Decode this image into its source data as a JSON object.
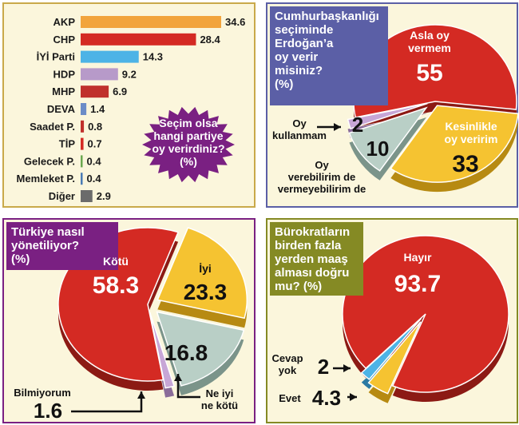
{
  "colors": {
    "panel_bg": "#fbf6dc",
    "border": "#c9a94a",
    "red": "#d42a23",
    "red_dark": "#8c1a14",
    "yellow": "#f5c331",
    "yellow_dark": "#b78a12",
    "grey": "#b9cfc6",
    "grey_dark": "#7b948a",
    "purple_badge": "#7a2082",
    "blue_box": "#5b5fa6",
    "olive_box": "#858a24"
  },
  "chart_data": [
    {
      "type": "bar",
      "title": "Seçim olsa hangi partiye oy verirdiniz? (%)",
      "categories": [
        "AKP",
        "CHP",
        "İYİ Parti",
        "HDP",
        "MHP",
        "DEVA",
        "Saadet P.",
        "TİP",
        "Gelecek P.",
        "Memleket P.",
        "Diğer"
      ],
      "values": [
        34.6,
        28.4,
        14.3,
        9.2,
        6.9,
        1.4,
        0.8,
        0.7,
        0.4,
        0.4,
        2.9
      ],
      "value_labels": [
        "34.6",
        "28.4",
        "14.3",
        "9.2",
        "6.9",
        "1.4",
        "0.8",
        "0.7",
        "0.4",
        "0.4",
        "2.9"
      ],
      "colors": [
        "#f2a43c",
        "#d42a23",
        "#4db3e6",
        "#b79ac9",
        "#c0302c",
        "#6b8cc7",
        "#c0302c",
        "#d42a23",
        "#6aa84f",
        "#4a7bb5",
        "#6b6b6b"
      ],
      "xlim": [
        0,
        34.6
      ]
    },
    {
      "type": "pie",
      "title": "Cumhurbaşkanlığı seçiminde Erdoğan’a oy verir misiniz? (%)",
      "categories": [
        "Asla oy vermem",
        "Kesinlikle oy veririm",
        "Oy verebilirim de vermeyebilirim de",
        "Oy kullanmam"
      ],
      "values": [
        55,
        33,
        10,
        2
      ],
      "value_labels": [
        "55",
        "33",
        "10",
        "2"
      ],
      "label_lines": [
        [
          "Asla oy",
          "vermem"
        ],
        [
          "Kesinlikle",
          "oy veririm"
        ],
        [
          "Oy",
          "verebilirim de",
          "vermeyebilirim de"
        ],
        [
          "Oy",
          "kullanmam"
        ]
      ]
    },
    {
      "type": "pie",
      "title": "Türkiye nasıl yönetiliyor? (%)",
      "categories": [
        "Kötü",
        "İyi",
        "Ne iyi ne kötü",
        "Bilmiyorum"
      ],
      "values": [
        58.3,
        23.3,
        16.8,
        1.6
      ],
      "value_labels": [
        "58.3",
        "23.3",
        "16.8",
        "1.6"
      ],
      "label_lines": [
        [
          "Kötü"
        ],
        [
          "İyi"
        ],
        [
          "Ne iyi",
          "ne kötü"
        ],
        [
          "Bilmiyorum"
        ]
      ]
    },
    {
      "type": "pie",
      "title": "Bürokratların birden fazla yerden maaş alması doğru mu? (%)",
      "categories": [
        "Hayır",
        "Evet",
        "Cevap yok"
      ],
      "values": [
        93.7,
        4.3,
        2
      ],
      "value_labels": [
        "93.7",
        "4.3",
        "2"
      ],
      "label_lines": [
        [
          "Hayır"
        ],
        [
          "Evet"
        ],
        [
          "Cevap",
          "yok"
        ]
      ]
    }
  ],
  "panels": {
    "p1": {
      "badge_lines": [
        "Seçim olsa",
        "hangi partiye",
        "oy verirdiniz?",
        "(%)"
      ]
    },
    "p2": {
      "title_lines": [
        "Cumhurbaşkanlığı",
        "seçiminde",
        "Erdoğan’a",
        "oy verir",
        "misiniz?",
        "(%)"
      ]
    },
    "p3": {
      "title_lines": [
        "Türkiye nasıl",
        "yönetiliyor?",
        "(%)"
      ]
    },
    "p4": {
      "title_lines": [
        "Bürokratların",
        "birden fazla",
        "yerden maaş",
        "alması doğru",
        "mu? (%)"
      ]
    }
  }
}
